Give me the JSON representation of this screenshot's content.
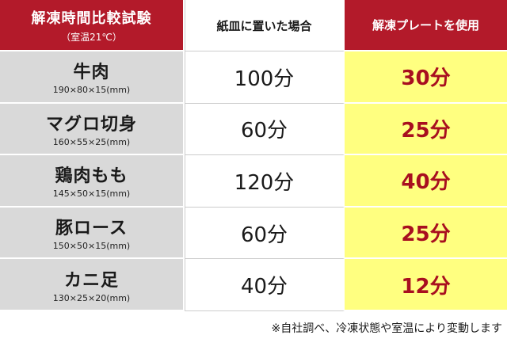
{
  "header": {
    "title": "解凍時間比較試験",
    "subtitle": "（室温21℃）",
    "col_paper": "紙皿に置いた場合",
    "col_plate": "解凍プレートを使用"
  },
  "rows": [
    {
      "name": "牛肉",
      "size": "190×80×15(mm)",
      "paper": "100分",
      "plate": "30分"
    },
    {
      "name": "マグロ切身",
      "size": "160×55×25(mm)",
      "paper": "60分",
      "plate": "25分"
    },
    {
      "name": "鶏肉もも",
      "size": "145×50×15(mm)",
      "paper": "120分",
      "plate": "40分"
    },
    {
      "name": "豚ロース",
      "size": "150×50×15(mm)",
      "paper": "60分",
      "plate": "25分"
    },
    {
      "name": "カニ足",
      "size": "130×25×20(mm)",
      "paper": "40分",
      "plate": "12分"
    }
  ],
  "note": "※自社調べ、冷凍状態や室温により変動します",
  "colors": {
    "header_red": "#b31a2a",
    "label_gray": "#d9d9d9",
    "plate_yellow": "#ffff80",
    "plate_text": "#a80f1f"
  }
}
